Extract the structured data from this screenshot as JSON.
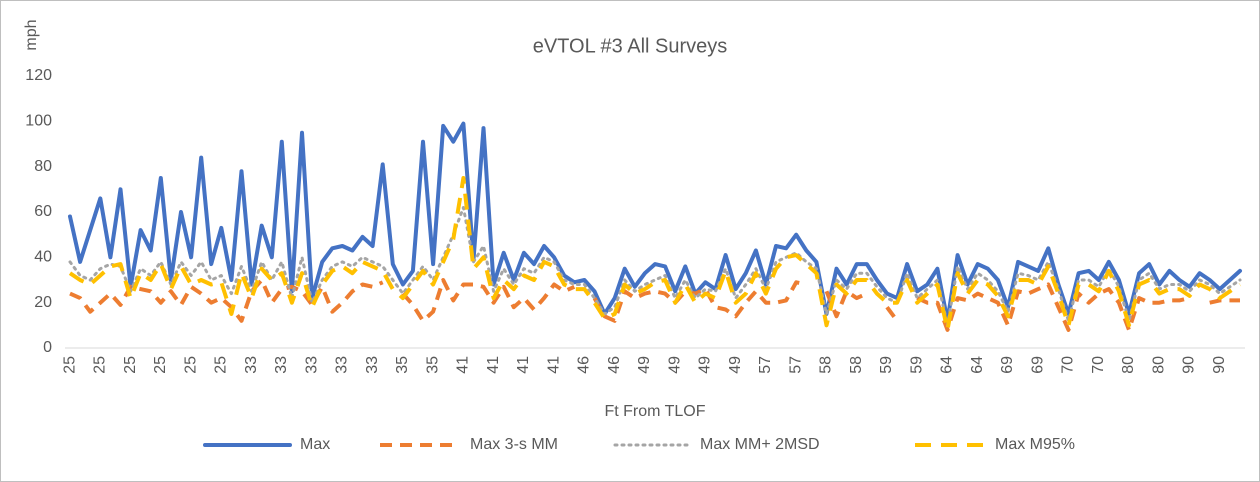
{
  "chart_data": {
    "type": "line",
    "title": "eVTOL #3 All Surveys",
    "y_label": "mph",
    "x_label": "Ft From TLOF",
    "ylim": [
      0,
      120
    ],
    "yticks": [
      0,
      20,
      40,
      60,
      80,
      100,
      120
    ],
    "grid": false,
    "legend": "bottom",
    "categories": [
      "25",
      null,
      null,
      "25",
      null,
      null,
      "25",
      null,
      null,
      "25",
      null,
      null,
      "25",
      null,
      null,
      "25",
      null,
      null,
      "33",
      null,
      null,
      "33",
      null,
      null,
      "33",
      null,
      null,
      "33",
      null,
      null,
      "33",
      null,
      null,
      "35",
      null,
      null,
      "35",
      null,
      null,
      "41",
      null,
      null,
      "41",
      null,
      null,
      "41",
      null,
      null,
      "41",
      null,
      null,
      "46",
      null,
      null,
      "46",
      null,
      null,
      "49",
      null,
      null,
      "49",
      null,
      null,
      "49",
      null,
      null,
      "49",
      null,
      null,
      "57",
      null,
      null,
      "57",
      null,
      null,
      "58",
      null,
      null,
      "58",
      null,
      null,
      "59",
      null,
      null,
      "59",
      null,
      null,
      "64",
      null,
      null,
      "64",
      null,
      null,
      "69",
      null,
      null,
      "69",
      null,
      null,
      "70",
      null,
      null,
      "70",
      null,
      null,
      "80",
      null,
      null,
      "80",
      null,
      null,
      "90",
      null,
      null,
      "90",
      null,
      null
    ],
    "series": [
      {
        "name": "Max",
        "color": "#4472c4",
        "style": "solid",
        "values": [
          58,
          38,
          52,
          66,
          40,
          70,
          27,
          52,
          43,
          75,
          30,
          60,
          40,
          84,
          37,
          53,
          30,
          78,
          28,
          54,
          40,
          91,
          25,
          95,
          22,
          38,
          44,
          45,
          43,
          49,
          45,
          81,
          37,
          28,
          34,
          91,
          37,
          98,
          91,
          99,
          39,
          97,
          28,
          42,
          30,
          42,
          37,
          45,
          40,
          32,
          29,
          30,
          25,
          15,
          22,
          35,
          27,
          33,
          37,
          36,
          25,
          36,
          24,
          29,
          26,
          41,
          26,
          33,
          43,
          28,
          45,
          44,
          50,
          43,
          38,
          15,
          35,
          28,
          37,
          37,
          30,
          24,
          22,
          37,
          25,
          28,
          35,
          12,
          41,
          28,
          37,
          35,
          30,
          18,
          38,
          36,
          34,
          44,
          28,
          15,
          33,
          34,
          30,
          38,
          30,
          15,
          33,
          37,
          28,
          34,
          30,
          27,
          33,
          30,
          26,
          30,
          34
        ]
      },
      {
        "name": "Max 3-s MM",
        "color": "#ed7d31",
        "style": "dash",
        "values": [
          24,
          22,
          16,
          20,
          24,
          19,
          27,
          26,
          25,
          20,
          25,
          19,
          27,
          24,
          20,
          22,
          18,
          12,
          25,
          30,
          20,
          26,
          27,
          25,
          19,
          27,
          16,
          20,
          25,
          28,
          27,
          29,
          null,
          24,
          19,
          12,
          16,
          30,
          21,
          28,
          28,
          27,
          20,
          27,
          18,
          22,
          17,
          22,
          28,
          25,
          27,
          null,
          22,
          14,
          12,
          25,
          22,
          24,
          25,
          24,
          20,
          25,
          24,
          26,
          18,
          17,
          14,
          20,
          25,
          20,
          20,
          21,
          29,
          28,
          null,
          25,
          14,
          25,
          22,
          24,
          null,
          18,
          12,
          null,
          22,
          20,
          20,
          8,
          22,
          21,
          24,
          22,
          20,
          10,
          25,
          24,
          26,
          28,
          18,
          8,
          24,
          20,
          24,
          26,
          20,
          8,
          22,
          20,
          20,
          21,
          21,
          22,
          null,
          20,
          21,
          21,
          21
        ]
      },
      {
        "name": "Max MM+ 2MSD",
        "color": "#a5a5a5",
        "style": "dot",
        "values": [
          38,
          32,
          30,
          35,
          37,
          36,
          25,
          35,
          32,
          38,
          28,
          38,
          32,
          38,
          30,
          32,
          24,
          36,
          25,
          38,
          30,
          38,
          22,
          40,
          20,
          30,
          36,
          38,
          36,
          40,
          38,
          36,
          30,
          24,
          30,
          36,
          30,
          40,
          50,
          62,
          38,
          45,
          25,
          35,
          28,
          35,
          33,
          40,
          38,
          30,
          28,
          28,
          22,
          15,
          18,
          30,
          25,
          28,
          30,
          32,
          22,
          30,
          22,
          26,
          25,
          35,
          22,
          28,
          35,
          26,
          38,
          40,
          42,
          38,
          35,
          15,
          30,
          26,
          33,
          33,
          27,
          22,
          20,
          33,
          22,
          26,
          30,
          10,
          36,
          26,
          33,
          30,
          25,
          16,
          33,
          32,
          30,
          38,
          26,
          12,
          30,
          30,
          27,
          35,
          27,
          12,
          30,
          33,
          26,
          28,
          28,
          25,
          30,
          28,
          24,
          27,
          30
        ]
      },
      {
        "name": "Max M95%",
        "color": "#ffc000",
        "style": "longdash",
        "values": [
          33,
          30,
          28,
          32,
          36,
          37,
          22,
          33,
          30,
          37,
          26,
          36,
          28,
          30,
          28,
          29,
          15,
          33,
          22,
          35,
          30,
          33,
          20,
          33,
          18,
          28,
          34,
          36,
          33,
          38,
          36,
          34,
          26,
          22,
          28,
          34,
          28,
          38,
          48,
          75,
          35,
          40,
          22,
          30,
          26,
          32,
          30,
          38,
          36,
          28,
          26,
          26,
          20,
          13,
          15,
          28,
          24,
          26,
          29,
          30,
          20,
          28,
          20,
          24,
          22,
          34,
          20,
          24,
          33,
          24,
          35,
          40,
          41,
          37,
          33,
          10,
          28,
          24,
          30,
          30,
          24,
          20,
          20,
          30,
          20,
          24,
          28,
          8,
          33,
          24,
          30,
          28,
          23,
          14,
          30,
          30,
          28,
          36,
          24,
          10,
          28,
          28,
          25,
          34,
          25,
          10,
          28,
          30,
          24,
          26,
          26,
          23,
          28,
          26,
          22,
          25,
          28
        ]
      }
    ]
  }
}
